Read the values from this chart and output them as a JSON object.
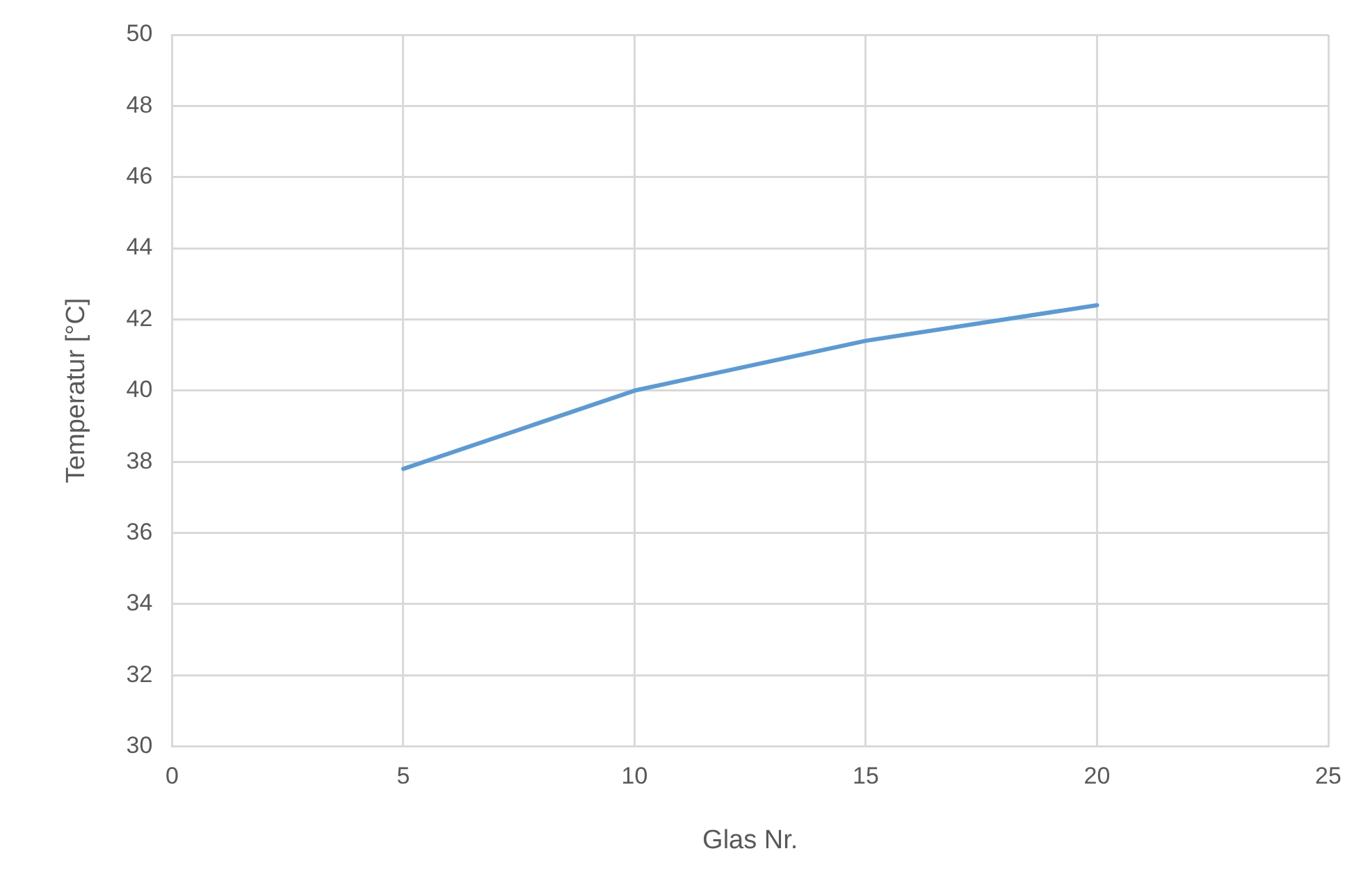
{
  "chart_data": {
    "type": "line",
    "xlabel": "Glas Nr.",
    "ylabel": "Temperatur [°C]",
    "x": [
      5,
      10,
      15,
      20
    ],
    "series": [
      {
        "color": "#5b9bd5",
        "values": [
          37.8,
          40.0,
          41.4,
          42.4
        ]
      }
    ],
    "xlim": [
      0,
      25
    ],
    "xticks": [
      0,
      5,
      10,
      15,
      20,
      25
    ],
    "ylim": [
      30,
      50
    ],
    "yticks": [
      30,
      32,
      34,
      36,
      38,
      40,
      42,
      44,
      46,
      48,
      50
    ],
    "grid": true,
    "legend": false,
    "marker": "none",
    "line_style": "solid"
  }
}
